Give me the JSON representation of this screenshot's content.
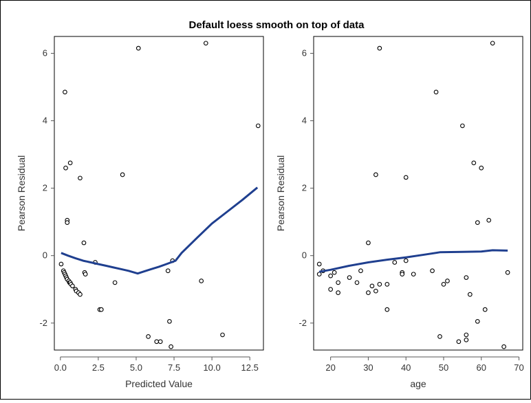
{
  "chart_data": {
    "title": "Default loess smooth on top of data",
    "panels": [
      {
        "type": "scatter",
        "xlabel": "Predicted Value",
        "ylabel": "Pearson Residual",
        "xlim": [
          -0.4,
          13.4
        ],
        "ylim": [
          -2.8,
          6.5
        ],
        "xticks": [
          "0.0",
          "2.5",
          "5.0",
          "7.5",
          "10.0",
          "12.5"
        ],
        "xtick_values": [
          0,
          2.5,
          5,
          7.5,
          10,
          12.5
        ],
        "yticks": [
          "-2",
          "0",
          "2",
          "4",
          "6"
        ],
        "ytick_values": [
          -2,
          0,
          2,
          4,
          6
        ],
        "points": [
          [
            0.05,
            -0.25
          ],
          [
            0.2,
            -0.45
          ],
          [
            0.25,
            -0.5
          ],
          [
            0.3,
            -0.55
          ],
          [
            0.35,
            -0.6
          ],
          [
            0.4,
            -0.65
          ],
          [
            0.45,
            -0.7
          ],
          [
            0.55,
            -0.75
          ],
          [
            0.6,
            -0.8
          ],
          [
            0.65,
            -0.8
          ],
          [
            0.7,
            -0.85
          ],
          [
            0.8,
            -0.9
          ],
          [
            1.0,
            -1.0
          ],
          [
            1.05,
            -1.05
          ],
          [
            1.2,
            -1.1
          ],
          [
            1.3,
            -1.15
          ],
          [
            0.3,
            4.85
          ],
          [
            0.35,
            2.6
          ],
          [
            0.65,
            2.75
          ],
          [
            1.3,
            2.3
          ],
          [
            0.45,
            1.05
          ],
          [
            0.45,
            0.98
          ],
          [
            1.55,
            0.38
          ],
          [
            1.6,
            -0.5
          ],
          [
            1.65,
            -0.55
          ],
          [
            2.3,
            -0.2
          ],
          [
            2.6,
            -1.6
          ],
          [
            2.7,
            -1.6
          ],
          [
            3.6,
            -0.8
          ],
          [
            4.1,
            2.4
          ],
          [
            5.15,
            6.15
          ],
          [
            5.8,
            -2.4
          ],
          [
            6.35,
            -2.55
          ],
          [
            6.6,
            -2.55
          ],
          [
            7.1,
            -0.45
          ],
          [
            7.2,
            -1.95
          ],
          [
            7.3,
            -2.7
          ],
          [
            7.4,
            -0.15
          ],
          [
            9.3,
            -0.75
          ],
          [
            9.6,
            6.3
          ],
          [
            10.7,
            -2.35
          ],
          [
            13.05,
            3.85
          ]
        ],
        "smooth": [
          [
            0.05,
            0.08
          ],
          [
            0.5,
            0.0
          ],
          [
            1.0,
            -0.08
          ],
          [
            1.5,
            -0.15
          ],
          [
            2.0,
            -0.2
          ],
          [
            2.5,
            -0.25
          ],
          [
            3.0,
            -0.3
          ],
          [
            3.5,
            -0.35
          ],
          [
            4.0,
            -0.4
          ],
          [
            4.5,
            -0.45
          ],
          [
            5.1,
            -0.53
          ],
          [
            5.5,
            -0.47
          ],
          [
            6.0,
            -0.4
          ],
          [
            6.5,
            -0.33
          ],
          [
            7.0,
            -0.25
          ],
          [
            7.6,
            -0.15
          ],
          [
            8.0,
            0.08
          ],
          [
            9.0,
            0.52
          ],
          [
            10.0,
            0.95
          ],
          [
            11.0,
            1.3
          ],
          [
            12.0,
            1.65
          ],
          [
            13.0,
            2.02
          ]
        ]
      },
      {
        "type": "scatter",
        "xlabel": "age",
        "ylabel": "Pearson Residual",
        "xlim": [
          15.5,
          71
        ],
        "ylim": [
          -2.8,
          6.5
        ],
        "xticks": [
          "20",
          "30",
          "40",
          "50",
          "60",
          "70"
        ],
        "xtick_values": [
          20,
          30,
          40,
          50,
          60,
          70
        ],
        "yticks": [
          "-2",
          "0",
          "2",
          "4",
          "6"
        ],
        "ytick_values": [
          -2,
          0,
          2,
          4,
          6
        ],
        "points": [
          [
            17,
            -0.25
          ],
          [
            17,
            -0.55
          ],
          [
            18,
            -0.45
          ],
          [
            20,
            -0.6
          ],
          [
            20,
            -1.0
          ],
          [
            21,
            -0.5
          ],
          [
            22,
            -0.8
          ],
          [
            22,
            -1.1
          ],
          [
            25,
            -0.65
          ],
          [
            27,
            -0.8
          ],
          [
            28,
            -0.45
          ],
          [
            30,
            -1.1
          ],
          [
            30,
            0.38
          ],
          [
            31,
            -0.9
          ],
          [
            32,
            2.4
          ],
          [
            32,
            -1.05
          ],
          [
            33,
            6.15
          ],
          [
            33,
            -0.85
          ],
          [
            35,
            -0.85
          ],
          [
            35,
            -1.6
          ],
          [
            37,
            -0.2
          ],
          [
            39,
            -0.5
          ],
          [
            39,
            -0.55
          ],
          [
            40,
            -0.15
          ],
          [
            40,
            2.32
          ],
          [
            42,
            -0.55
          ],
          [
            47,
            -0.45
          ],
          [
            48,
            4.85
          ],
          [
            49,
            -2.4
          ],
          [
            50,
            -0.85
          ],
          [
            51,
            -0.75
          ],
          [
            54,
            -2.55
          ],
          [
            55,
            3.85
          ],
          [
            56,
            -0.65
          ],
          [
            56,
            -2.35
          ],
          [
            56,
            -2.5
          ],
          [
            57,
            -1.15
          ],
          [
            58,
            2.75
          ],
          [
            59,
            0.98
          ],
          [
            59,
            -1.95
          ],
          [
            60,
            2.6
          ],
          [
            61,
            -1.6
          ],
          [
            62,
            1.05
          ],
          [
            63,
            6.3
          ],
          [
            66,
            -2.7
          ],
          [
            67,
            -0.5
          ]
        ],
        "smooth": [
          [
            17,
            -0.48
          ],
          [
            20,
            -0.42
          ],
          [
            25,
            -0.3
          ],
          [
            30,
            -0.2
          ],
          [
            35,
            -0.12
          ],
          [
            40,
            -0.05
          ],
          [
            45,
            0.03
          ],
          [
            49,
            0.1
          ],
          [
            55,
            0.11
          ],
          [
            60,
            0.12
          ],
          [
            63,
            0.16
          ],
          [
            67,
            0.15
          ]
        ]
      }
    ]
  }
}
